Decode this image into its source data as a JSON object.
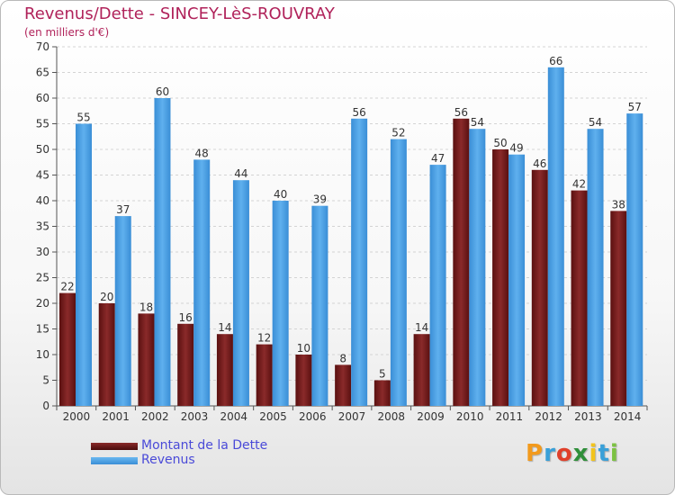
{
  "chart_data": {
    "type": "bar",
    "title": "Revenus/Dette - SINCEY-LèS-ROUVRAY",
    "subtitle": "(en milliers d'€)",
    "categories": [
      "2000",
      "2001",
      "2002",
      "2003",
      "2004",
      "2005",
      "2006",
      "2007",
      "2008",
      "2009",
      "2010",
      "2011",
      "2012",
      "2013",
      "2014"
    ],
    "series": [
      {
        "name": "Montant de la Dette",
        "color": "#7a1d1d",
        "values": [
          22,
          20,
          18,
          16,
          14,
          12,
          10,
          8,
          5,
          14,
          56,
          50,
          46,
          42,
          38
        ]
      },
      {
        "name": "Revenus",
        "color": "#4a9fe2",
        "values": [
          55,
          37,
          60,
          48,
          44,
          40,
          39,
          56,
          52,
          47,
          54,
          49,
          66,
          54,
          57
        ]
      }
    ],
    "ylim": [
      0,
      70
    ],
    "yticks": [
      0,
      5,
      10,
      15,
      20,
      25,
      30,
      35,
      40,
      45,
      50,
      55,
      60,
      65,
      70
    ],
    "grid": true,
    "legend_placement": "bottom-left"
  },
  "logo": {
    "text": "Proxiti",
    "colors": [
      "#f29a1d",
      "#3aa0d8",
      "#e0402a",
      "#2f8f3a",
      "#f2c41d",
      "#3aa0d8",
      "#7cc242"
    ]
  }
}
